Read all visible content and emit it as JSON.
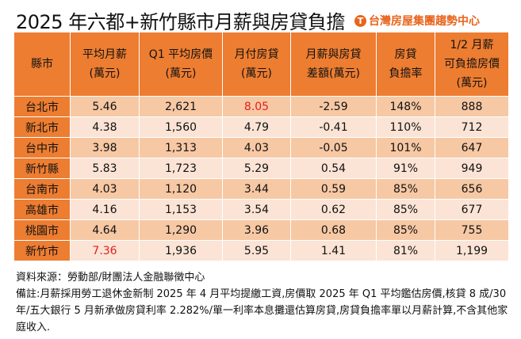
{
  "title": "2025 年六都+新竹縣市月薪與房貸負擔",
  "brand": "台灣房屋集團趨勢中心",
  "headers": [
    [
      "縣市",
      ""
    ],
    [
      "平均月薪",
      "(萬元)"
    ],
    [
      "Q1 平均房價",
      "(萬元)"
    ],
    [
      "月付房貸",
      "(萬元)"
    ],
    [
      "月薪與房貸",
      "差額(萬元)"
    ],
    [
      "房貸",
      "負擔率"
    ],
    [
      "1/2 月薪",
      "可負擔房價",
      "(萬元)"
    ]
  ],
  "rows": [
    [
      "台北市",
      "5.46",
      "2,621",
      "8.05",
      "-2.59",
      "148%",
      "888"
    ],
    [
      "新北市",
      "4.38",
      "1,560",
      "4.79",
      "-0.41",
      "110%",
      "712"
    ],
    [
      "台中市",
      "3.98",
      "1,313",
      "4.03",
      "-0.05",
      "101%",
      "647"
    ],
    [
      "新竹縣",
      "5.83",
      "1,723",
      "5.29",
      "0.54",
      "91%",
      "949"
    ],
    [
      "台南市",
      "4.03",
      "1,120",
      "3.44",
      "0.59",
      "85%",
      "656"
    ],
    [
      "高雄市",
      "4.16",
      "1,153",
      "3.54",
      "0.62",
      "85%",
      "677"
    ],
    [
      "桃園市",
      "4.64",
      "1,290",
      "3.96",
      "0.68",
      "85%",
      "755"
    ],
    [
      "新竹市",
      "7.36",
      "1,936",
      "5.95",
      "1.41",
      "81%",
      "1,199"
    ]
  ],
  "highlight_color": "#e32020",
  "source": "資料來源：勞動部/財團法人金融聯徵中心",
  "note": "備註:月薪採用勞工退休金新制 2025 年 4 月平均提繳工資,房價取 2025 年 Q1 平均鑑估房價,核貸 8 成/30 年/五大銀行 5 月新承做房貸利率 2.282%/單一利率本息攤還估算房貸,房貸負擔率單以月薪計算,不含其他家庭收入."
}
